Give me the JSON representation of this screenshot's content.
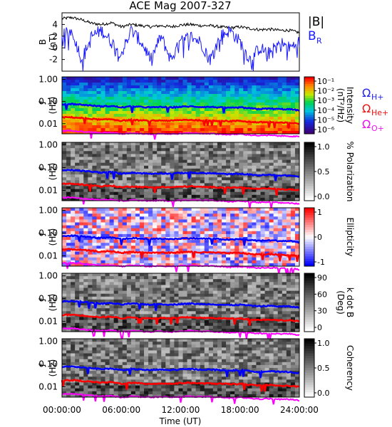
{
  "title": "ACE Mag 2007-327",
  "x_axis": {
    "label": "Time (UT)",
    "ticks": [
      "00:00:00",
      "06:00:00",
      "12:00:00",
      "18:00:00",
      "24:00:00"
    ]
  },
  "colors": {
    "bmag": "#000000",
    "br": "#1a1aff",
    "h": "#0000ff",
    "he": "#ff0000",
    "o": "#ff00ff",
    "text_blue": "#2222ee",
    "text_red": "#ee1111",
    "text_magenta": "#ee11ee"
  },
  "chart_data": [
    {
      "type": "line",
      "title": "ACE Mag 2007-327",
      "ylabel": "B (nT)",
      "ylabel_top": "B",
      "ylabel_bottom": "(nT)",
      "xlabel": "Time (UT)",
      "xlim_hours": [
        0,
        24
      ],
      "ylim": [
        -4,
        6
      ],
      "y_ticks": [
        "4",
        "2",
        "0",
        "-2"
      ],
      "y_tick_values": [
        4,
        2,
        0,
        -2
      ],
      "series": [
        {
          "name": "|B|",
          "color": "#000000",
          "x": [
            0,
            1,
            2,
            3,
            4,
            5,
            6,
            7,
            8,
            9,
            10,
            11,
            12,
            13,
            14,
            15,
            16,
            17,
            18,
            19,
            20,
            21,
            22,
            23,
            24
          ],
          "y": [
            5,
            5.2,
            4.8,
            4.2,
            4.0,
            4.3,
            3.6,
            4.0,
            3.8,
            3.6,
            3.8,
            3.6,
            3.9,
            4.0,
            3.8,
            3.8,
            3.6,
            3.4,
            3.6,
            3.3,
            3.1,
            3.2,
            3.0,
            3.0,
            2.6
          ]
        },
        {
          "name": "B",
          "subscript": "R",
          "color": "#1a1aff",
          "x": [
            0,
            1,
            2,
            3,
            4,
            5,
            6,
            7,
            8,
            9,
            10,
            11,
            12,
            13,
            14,
            15,
            16,
            17,
            18,
            19,
            20,
            21,
            22,
            23,
            24
          ],
          "y": [
            2,
            3,
            -2,
            2,
            3,
            1,
            -1,
            3,
            1,
            -2,
            2,
            -2,
            1,
            2,
            1,
            -2,
            2,
            3,
            1,
            -2,
            0,
            -1,
            1,
            0,
            1
          ]
        }
      ]
    },
    {
      "type": "heatmap",
      "ylabel": "f (Hz)",
      "ylabel_top": "f",
      "ylabel_bottom": "(Hz)",
      "yscale": "log",
      "y_ticks": [
        "1.00",
        "0.10",
        "0.01"
      ],
      "colorbar_label": "Intensity",
      "colorbar_units": "(nT²/Hz)",
      "colorbar_ticks": [
        "10⁻¹",
        "10⁻²",
        "10⁻³",
        "10⁻⁴",
        "10⁻⁵",
        "10⁻⁶"
      ],
      "colorbar_scale": "rainbow",
      "side_labels": [
        {
          "base": "Ω",
          "sub": "H+",
          "color": "#2222ee"
        },
        {
          "base": "Ω",
          "sub": "He+",
          "color": "#ee1111"
        },
        {
          "base": "Ω",
          "sub": "O+",
          "color": "#ee11ee"
        }
      ]
    },
    {
      "type": "heatmap",
      "ylabel": "f (Hz)",
      "ylabel_top": "f",
      "ylabel_bottom": "(Hz)",
      "yscale": "log",
      "y_ticks": [
        "1.00",
        "0.10",
        "0.01"
      ],
      "colorbar_label": "% Polarization",
      "colorbar_ticks": [
        "1.0",
        "0.5",
        "0.0"
      ],
      "colorbar_scale": "gray"
    },
    {
      "type": "heatmap",
      "ylabel": "f (Hz)",
      "ylabel_top": "f",
      "ylabel_bottom": "(Hz)",
      "yscale": "log",
      "y_ticks": [
        "1.00",
        "0.10",
        "0.01"
      ],
      "colorbar_label": "Ellipticity",
      "colorbar_ticks": [
        "1",
        "0",
        "-1"
      ],
      "colorbar_scale": "bwr"
    },
    {
      "type": "heatmap",
      "ylabel": "f (Hz)",
      "ylabel_top": "f",
      "ylabel_bottom": "(Hz)",
      "yscale": "log",
      "y_ticks": [
        "1.00",
        "0.10",
        "0.01"
      ],
      "colorbar_label": "k dot B",
      "colorbar_units": "(Deg)",
      "colorbar_ticks": [
        "90",
        "60",
        "30",
        "0"
      ],
      "colorbar_scale": "gray"
    },
    {
      "type": "heatmap",
      "ylabel": "f (Hz)",
      "ylabel_top": "f",
      "ylabel_bottom": "(Hz)",
      "yscale": "log",
      "y_ticks": [
        "1.00",
        "0.10",
        "0.01"
      ],
      "colorbar_label": "Coherency",
      "colorbar_ticks": [
        "1.0",
        "0.5",
        "0.0"
      ],
      "colorbar_scale": "gray"
    }
  ],
  "gyro_frequencies_hz": {
    "x_hours": [
      0,
      1,
      2,
      3,
      4,
      5,
      6,
      7,
      8,
      9,
      10,
      11,
      12,
      13,
      14,
      15,
      16,
      17,
      18,
      19,
      20,
      21,
      22,
      23,
      24
    ],
    "H+": [
      0.075,
      0.078,
      0.072,
      0.066,
      0.06,
      0.063,
      0.054,
      0.06,
      0.057,
      0.054,
      0.057,
      0.054,
      0.058,
      0.06,
      0.057,
      0.057,
      0.054,
      0.051,
      0.054,
      0.049,
      0.046,
      0.048,
      0.045,
      0.045,
      0.04
    ],
    "He+": [
      0.019,
      0.0195,
      0.018,
      0.0165,
      0.015,
      0.016,
      0.0135,
      0.015,
      0.014,
      0.0135,
      0.014,
      0.0135,
      0.0145,
      0.015,
      0.014,
      0.014,
      0.0135,
      0.013,
      0.0135,
      0.012,
      0.0115,
      0.012,
      0.011,
      0.011,
      0.01
    ],
    "O+": [
      0.0047,
      0.0049,
      0.0045,
      0.0041,
      0.0038,
      0.004,
      0.0034,
      0.0038,
      0.0036,
      0.0034,
      0.0036,
      0.0034,
      0.0036,
      0.0038,
      0.0036,
      0.0036,
      0.0034,
      0.0032,
      0.0034,
      0.0031,
      0.0029,
      0.003,
      0.0028,
      0.0028,
      0.0025
    ]
  }
}
